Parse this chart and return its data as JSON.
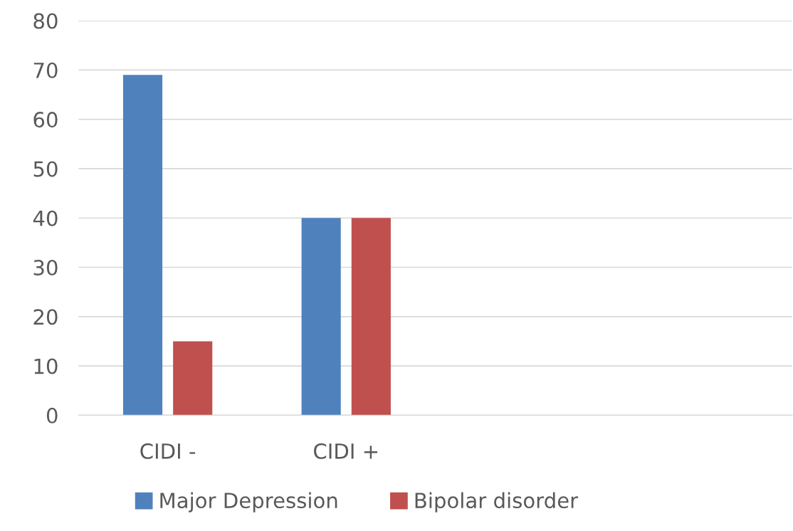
{
  "chart_data": {
    "type": "bar",
    "categories": [
      "CIDI -",
      "CIDI +",
      null,
      null
    ],
    "series": [
      {
        "name": "Major Depression",
        "color": "#4f81bd",
        "values": [
          69,
          40,
          null,
          null
        ]
      },
      {
        "name": "Bipolar disorder",
        "color": "#c0504d",
        "values": [
          15,
          40,
          null,
          null
        ]
      }
    ],
    "ylim": [
      0,
      80
    ],
    "yticks": [
      0,
      10,
      20,
      30,
      40,
      50,
      60,
      70,
      80
    ],
    "grid": "y",
    "legend": "bottom"
  }
}
